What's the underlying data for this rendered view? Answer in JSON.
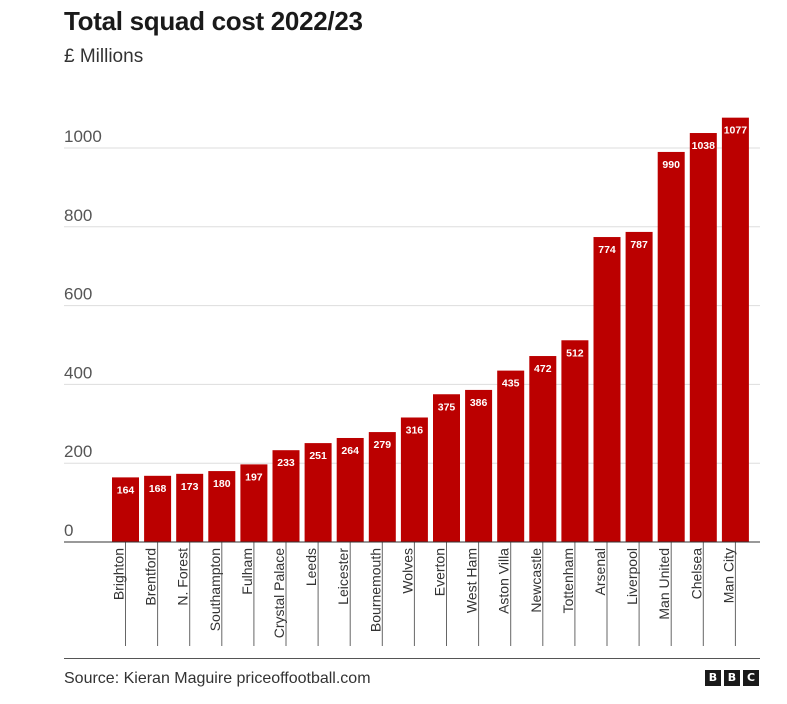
{
  "header": {
    "title": "Total squad cost 2022/23",
    "subtitle": "£ Millions"
  },
  "footer": {
    "source": "Source: Kieran Maguire priceoffootball.com",
    "logo_letters": [
      "B",
      "B",
      "C"
    ]
  },
  "colors": {
    "bar": "#bb0000",
    "grid": "#dddddd",
    "axis_text": "#555555"
  },
  "chart_data": {
    "type": "bar",
    "title": "Total squad cost 2022/23",
    "subtitle": "£ Millions",
    "categories": [
      "Brighton",
      "Brentford",
      "N. Forest",
      "Southampton",
      "Fulham",
      "Crystal Palace",
      "Leeds",
      "Leicester",
      "Bournemouth",
      "Wolves",
      "Everton",
      "West Ham",
      "Aston Villa",
      "Newcastle",
      "Tottenham",
      "Arsenal",
      "Liverpool",
      "Man United",
      "Chelsea",
      "Man City"
    ],
    "values": [
      164,
      168,
      173,
      180,
      197,
      233,
      251,
      264,
      279,
      316,
      375,
      386,
      435,
      472,
      512,
      774,
      787,
      990,
      1038,
      1077
    ],
    "ylim": [
      0,
      1100
    ],
    "yticks": [
      0,
      200,
      400,
      600,
      800,
      1000
    ],
    "grid": true,
    "data_labels": true
  }
}
